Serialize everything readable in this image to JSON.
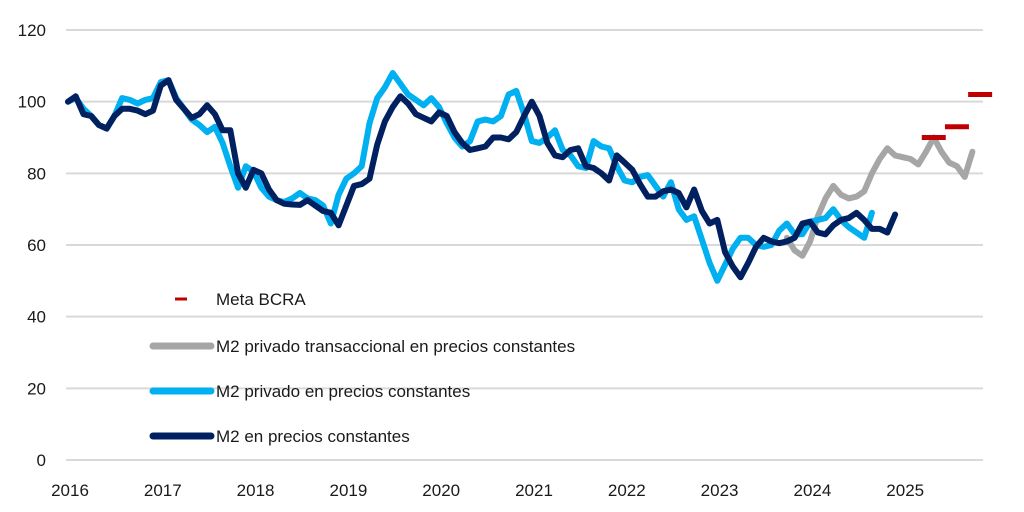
{
  "chart_data": {
    "type": "line",
    "title": "",
    "xlabel": "",
    "ylabel": "",
    "ylim": [
      0,
      120
    ],
    "yticks": [
      0,
      20,
      40,
      60,
      80,
      100,
      120
    ],
    "xticks": [
      "2016",
      "2017",
      "2018",
      "2019",
      "2020",
      "2021",
      "2022",
      "2023",
      "2024",
      "2025"
    ],
    "x_start": "2016-01",
    "x_frequency": "monthly",
    "grid": "horizontal",
    "legend_position": "center-left",
    "legend": [
      {
        "key": "meta",
        "label": "Meta BCRA"
      },
      {
        "key": "m2_priv_trans",
        "label": "M2 privado transaccional en precios constantes"
      },
      {
        "key": "m2_priv",
        "label": "M2 privado en precios constantes"
      },
      {
        "key": "m2",
        "label": "M2 en precios constantes"
      }
    ],
    "colors": {
      "meta": "#c00000",
      "m2_priv_trans": "#a6a6a6",
      "m2_priv": "#00b0f0",
      "m2": "#002060",
      "grid": "#d9d9d9"
    },
    "series": [
      {
        "key": "m2_priv_trans",
        "name": "M2 privado transaccional en precios constantes",
        "start_index": 93,
        "values": [
          62,
          58.5,
          57,
          61,
          68,
          73,
          76.5,
          74,
          73,
          73.5,
          75,
          80,
          84,
          87,
          85,
          84.5,
          84,
          82.5,
          86,
          90,
          86,
          83,
          82,
          79,
          86
        ]
      },
      {
        "key": "m2_priv",
        "name": "M2 privado en precios constantes",
        "start_index": 0,
        "values": [
          100,
          101,
          98,
          96,
          93.5,
          92.5,
          96,
          101,
          100.5,
          99.5,
          100.5,
          101,
          105.5,
          106,
          101,
          98,
          95,
          93.5,
          91.5,
          93,
          88.5,
          82,
          76,
          82,
          80.5,
          76,
          73.5,
          72.5,
          72,
          73,
          74.5,
          73,
          72.5,
          71,
          66,
          74,
          78.5,
          80,
          82,
          94,
          101,
          104,
          108,
          105,
          102,
          100.5,
          99,
          101,
          98.5,
          94,
          90,
          87.5,
          89,
          94.5,
          95,
          94.5,
          96,
          102,
          103,
          96.5,
          89,
          88.5,
          90,
          92,
          86.5,
          85,
          82,
          81.5,
          89,
          87.5,
          87,
          82,
          78,
          77.5,
          79,
          79.5,
          76.5,
          73.5,
          77.5,
          70,
          67,
          68,
          61.5,
          55,
          50,
          54.5,
          59,
          62,
          62,
          60,
          59.5,
          60,
          64,
          66,
          63,
          63,
          66.5,
          67,
          67.5,
          70,
          67,
          65,
          63.5,
          62,
          69
        ]
      },
      {
        "key": "m2",
        "name": "M2 en precios constantes",
        "start_index": 0,
        "values": [
          100,
          101.5,
          96.5,
          96,
          93.5,
          92.5,
          96,
          98,
          98,
          97.5,
          96.5,
          97.5,
          104.5,
          106,
          100.5,
          98,
          95.5,
          96.5,
          99,
          96.5,
          92,
          92,
          80,
          76,
          81,
          80,
          75.5,
          72.5,
          71.5,
          71.3,
          71.2,
          72.5,
          71,
          69.5,
          69,
          65.5,
          71,
          76.5,
          77,
          78.5,
          88,
          94.5,
          98.5,
          101.5,
          99.5,
          96.5,
          95.5,
          94.5,
          97,
          96,
          91.5,
          88.5,
          86.5,
          87,
          87.5,
          90,
          90,
          89.5,
          91.5,
          96,
          100,
          96,
          88.5,
          85,
          84.5,
          86.5,
          87,
          82,
          81.5,
          80,
          78,
          85,
          83,
          81,
          77,
          73.5,
          73.5,
          75,
          75.5,
          74.5,
          70.5,
          75.5,
          69.5,
          66,
          67,
          58,
          54,
          51,
          55,
          59.5,
          62,
          61,
          60.5,
          61,
          62,
          66,
          66.5,
          63.5,
          63,
          65.5,
          67,
          67.5,
          69,
          67,
          64.5,
          64.5,
          63.5,
          68.5
        ]
      }
    ],
    "meta_markers": [
      {
        "x": "2025-05",
        "value": 90
      },
      {
        "x": "2025-08",
        "value": 93
      },
      {
        "x": "2025-11",
        "value": 102
      }
    ]
  }
}
